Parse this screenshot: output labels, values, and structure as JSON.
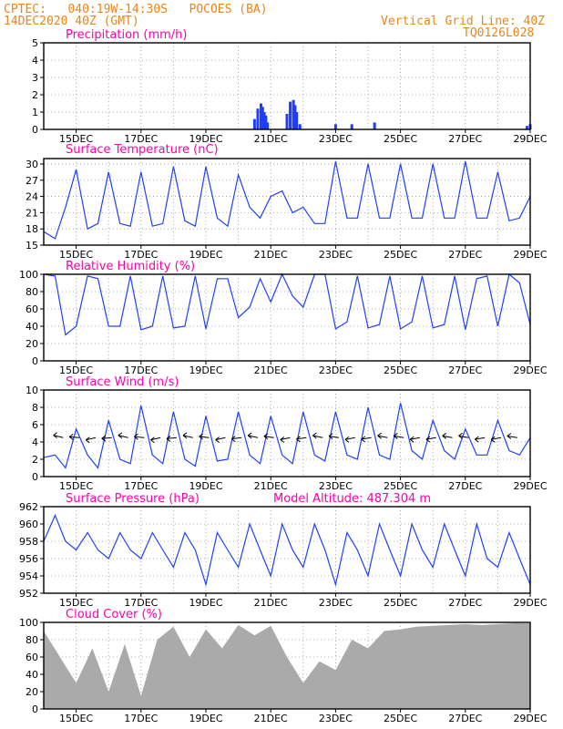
{
  "header": {
    "line1": "CPTEC:   040:19W-14:30S   POCOES (BA)",
    "line2": "14DEC2020 40Z (GMT)",
    "right1": "Vertical Grid Line: 40Z",
    "right2": "TQ0126L028"
  },
  "colors": {
    "header": "#e8861a",
    "title": "#ff00aa",
    "line": "#2040ff",
    "bar": "#1f3cff",
    "cloud": "#aaaaaa",
    "grid": "#9a9a9a"
  },
  "chart_data": [
    {
      "id": "precip",
      "type": "bar",
      "title": "Precipitation (mm/h)",
      "xlabels": [
        "15DEC",
        "17DEC",
        "19DEC",
        "21DEC",
        "23DEC",
        "25DEC",
        "27DEC",
        "29DEC"
      ],
      "ylim": [
        0,
        5
      ],
      "yticks": [
        0,
        1,
        2,
        3,
        4,
        5
      ],
      "grid": true,
      "x_days": [
        20.5,
        20.6,
        20.7,
        20.75,
        20.8,
        20.85,
        20.9,
        21.5,
        21.6,
        21.7,
        21.75,
        21.8,
        21.9,
        23.0,
        23.5,
        24.2,
        28.9,
        29.0
      ],
      "values": [
        0.6,
        1.2,
        1.5,
        1.3,
        1.0,
        0.8,
        0.4,
        0.9,
        1.6,
        1.7,
        1.4,
        1.0,
        0.3,
        0.3,
        0.3,
        0.4,
        0.2,
        0.3
      ]
    },
    {
      "id": "temp",
      "type": "line",
      "title": "Surface Temperature (nC)",
      "xlabels": [
        "15DEC",
        "17DEC",
        "19DEC",
        "21DEC",
        "23DEC",
        "25DEC",
        "27DEC",
        "29DEC"
      ],
      "ylim": [
        15,
        31
      ],
      "yticks": [
        15,
        18,
        21,
        24,
        27,
        30
      ],
      "grid": true,
      "x_days": [
        14.0,
        14.35,
        14.67,
        15.0,
        15.35,
        15.67,
        16.0,
        16.35,
        16.67,
        17.0,
        17.35,
        17.67,
        18.0,
        18.35,
        18.67,
        19.0,
        19.35,
        19.67,
        20.0,
        20.35,
        20.67,
        21.0,
        21.35,
        21.67,
        22.0,
        22.35,
        22.67,
        23.0,
        23.35,
        23.67,
        24.0,
        24.35,
        24.67,
        25.0,
        25.35,
        25.67,
        26.0,
        26.35,
        26.67,
        27.0,
        27.35,
        27.67,
        28.0,
        28.35,
        28.67,
        29.0
      ],
      "values": [
        17.5,
        16.2,
        22,
        29,
        18,
        19,
        28.5,
        19,
        18.5,
        28.5,
        18.5,
        19,
        29.5,
        19.5,
        18.5,
        29.5,
        20,
        18.5,
        28,
        22,
        20,
        24,
        25,
        21,
        22,
        19,
        19,
        30.5,
        20,
        20,
        30,
        20,
        20,
        30,
        20,
        20,
        30,
        20,
        20,
        30.5,
        20,
        20,
        28.5,
        19.5,
        20,
        24
      ]
    },
    {
      "id": "rh",
      "type": "line",
      "title": "Relative Humidity (%)",
      "xlabels": [
        "15DEC",
        "17DEC",
        "19DEC",
        "21DEC",
        "23DEC",
        "25DEC",
        "27DEC",
        "29DEC"
      ],
      "ylim": [
        0,
        100
      ],
      "yticks": [
        0,
        20,
        40,
        60,
        80,
        100
      ],
      "grid": true,
      "x_days": [
        14.0,
        14.35,
        14.67,
        15.0,
        15.35,
        15.67,
        16.0,
        16.35,
        16.67,
        17.0,
        17.35,
        17.67,
        18.0,
        18.35,
        18.67,
        19.0,
        19.35,
        19.67,
        20.0,
        20.35,
        20.67,
        21.0,
        21.35,
        21.67,
        22.0,
        22.35,
        22.67,
        23.0,
        23.35,
        23.67,
        24.0,
        24.35,
        24.67,
        25.0,
        25.35,
        25.67,
        26.0,
        26.35,
        26.67,
        27.0,
        27.35,
        27.67,
        28.0,
        28.35,
        28.67,
        29.0
      ],
      "values": [
        100,
        98,
        30,
        40,
        98,
        95,
        40,
        40,
        98,
        36,
        40,
        98,
        38,
        40,
        98,
        37,
        95,
        95,
        50,
        62,
        95,
        68,
        100,
        75,
        62,
        100,
        100,
        37,
        45,
        98,
        38,
        42,
        98,
        37,
        45,
        98,
        38,
        42,
        98,
        36,
        95,
        98,
        40,
        100,
        90,
        42
      ]
    },
    {
      "id": "wind",
      "type": "line",
      "title": "Surface Wind (m/s)",
      "xlabels": [
        "15DEC",
        "17DEC",
        "19DEC",
        "21DEC",
        "23DEC",
        "25DEC",
        "27DEC",
        "29DEC"
      ],
      "ylim": [
        0,
        10
      ],
      "yticks": [
        0,
        2,
        4,
        6,
        8,
        10
      ],
      "grid": true,
      "x_days": [
        14.0,
        14.35,
        14.67,
        15.0,
        15.35,
        15.67,
        16.0,
        16.35,
        16.67,
        17.0,
        17.35,
        17.67,
        18.0,
        18.35,
        18.67,
        19.0,
        19.35,
        19.67,
        20.0,
        20.35,
        20.67,
        21.0,
        21.35,
        21.67,
        22.0,
        22.35,
        22.67,
        23.0,
        23.35,
        23.67,
        24.0,
        24.35,
        24.67,
        25.0,
        25.35,
        25.67,
        26.0,
        26.35,
        26.67,
        27.0,
        27.35,
        27.67,
        28.0,
        28.35,
        28.67,
        29.0
      ],
      "values": [
        2.2,
        2.5,
        1,
        5.5,
        2.5,
        1,
        6.5,
        2,
        1.5,
        8.2,
        2.5,
        1.5,
        7.5,
        2,
        1.2,
        7,
        1.8,
        2,
        7.5,
        2.5,
        1.5,
        7,
        2.5,
        1.5,
        7.5,
        2.5,
        1.8,
        7.5,
        2.5,
        2,
        8,
        2.5,
        2,
        8.5,
        3,
        2,
        6.5,
        3,
        2,
        5.5,
        2.5,
        2.5,
        6.5,
        3,
        2.5,
        4.5
      ]
    },
    {
      "id": "pres",
      "type": "line",
      "title": "Surface Pressure (hPa)",
      "subtitle": "Model Altitude: 487.304 m",
      "xlabels": [
        "15DEC",
        "17DEC",
        "19DEC",
        "21DEC",
        "23DEC",
        "25DEC",
        "27DEC",
        "29DEC"
      ],
      "ylim": [
        952,
        962
      ],
      "yticks": [
        952,
        954,
        956,
        958,
        960,
        962
      ],
      "grid": true,
      "x_days": [
        14.0,
        14.35,
        14.67,
        15.0,
        15.35,
        15.67,
        16.0,
        16.35,
        16.67,
        17.0,
        17.35,
        17.67,
        18.0,
        18.35,
        18.67,
        19.0,
        19.35,
        19.67,
        20.0,
        20.35,
        20.67,
        21.0,
        21.35,
        21.67,
        22.0,
        22.35,
        22.67,
        23.0,
        23.35,
        23.67,
        24.0,
        24.35,
        24.67,
        25.0,
        25.35,
        25.67,
        26.0,
        26.35,
        26.67,
        27.0,
        27.35,
        27.67,
        28.0,
        28.35,
        28.67,
        29.0
      ],
      "values": [
        958,
        961,
        958,
        957,
        959,
        957,
        956,
        959,
        957,
        956,
        959,
        957,
        955,
        959,
        957,
        953,
        959,
        957,
        955,
        960,
        957,
        954,
        960,
        957,
        955,
        960,
        957,
        953,
        959,
        957,
        954,
        960,
        957,
        954,
        960,
        957,
        955,
        960,
        957,
        954,
        960,
        956,
        955,
        959,
        956,
        953
      ]
    },
    {
      "id": "cloud",
      "type": "area",
      "title": "Cloud Cover (%)",
      "xlabels": [
        "15DEC",
        "17DEC",
        "19DEC",
        "21DEC",
        "23DEC",
        "25DEC",
        "27DEC",
        "29DEC"
      ],
      "ylim": [
        0,
        100
      ],
      "yticks": [
        0,
        20,
        40,
        60,
        80,
        100
      ],
      "grid": true,
      "x_days": [
        14.0,
        14.5,
        15.0,
        15.5,
        16.0,
        16.5,
        17.0,
        17.5,
        18.0,
        18.5,
        19.0,
        19.5,
        20.0,
        20.5,
        21.0,
        21.5,
        22.0,
        22.5,
        23.0,
        23.5,
        24.0,
        24.5,
        25.0,
        25.5,
        26.0,
        26.5,
        27.0,
        27.5,
        28.0,
        28.5,
        29.0
      ],
      "values": [
        90,
        60,
        30,
        70,
        20,
        75,
        15,
        80,
        95,
        60,
        92,
        70,
        97,
        85,
        96,
        60,
        30,
        55,
        45,
        80,
        70,
        90,
        92,
        95,
        96,
        97,
        98,
        97,
        98,
        99,
        99
      ]
    }
  ]
}
